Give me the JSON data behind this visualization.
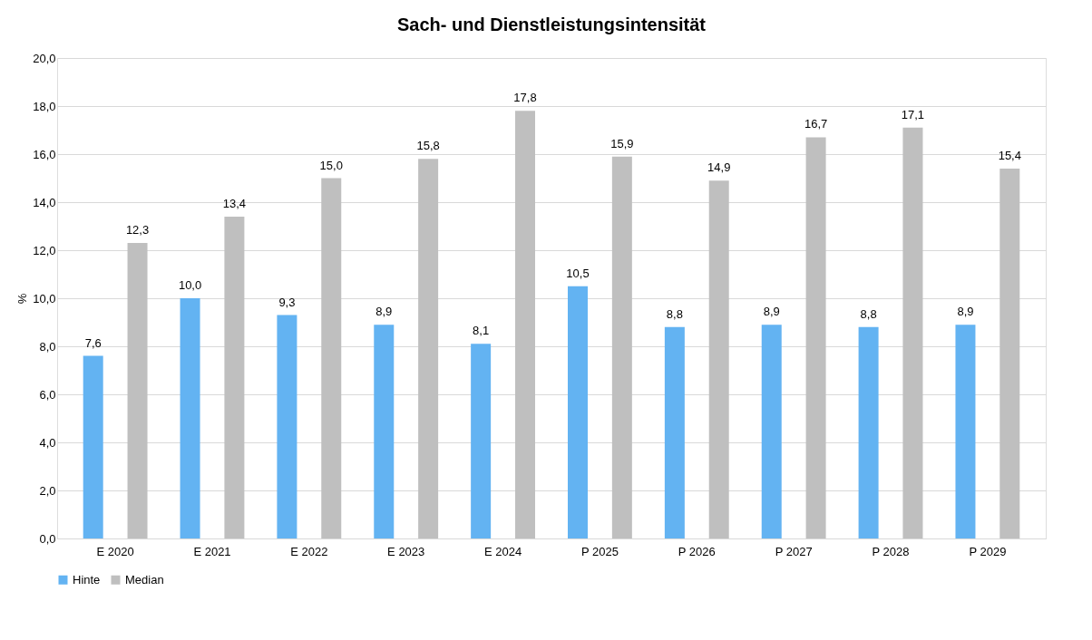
{
  "chart_data": {
    "type": "bar",
    "title": "Sach- und Dienstleistungsintensität",
    "ylabel": "%",
    "categories": [
      "E 2020",
      "E 2021",
      "E 2022",
      "E 2023",
      "E 2024",
      "P 2025",
      "P 2026",
      "P 2027",
      "P 2028",
      "P 2029"
    ],
    "series": [
      {
        "name": "Hinte",
        "color": "#63b3f2",
        "values": [
          7.6,
          10.0,
          9.3,
          8.9,
          8.1,
          10.5,
          8.8,
          8.9,
          8.8,
          8.9
        ],
        "value_labels": [
          "7,6",
          "10,0",
          "9,3",
          "8,9",
          "8,1",
          "10,5",
          "8,8",
          "8,9",
          "8,8",
          "8,9"
        ]
      },
      {
        "name": "Median",
        "color": "#bfbfbf",
        "values": [
          12.3,
          13.4,
          15.0,
          15.8,
          17.8,
          15.9,
          14.9,
          16.7,
          17.1,
          15.4
        ],
        "value_labels": [
          "12,3",
          "13,4",
          "15,0",
          "15,8",
          "17,8",
          "15,9",
          "14,9",
          "16,7",
          "17,1",
          "15,4"
        ]
      }
    ],
    "ylim": [
      0,
      20
    ],
    "yticks": [
      {
        "value": 0,
        "label": "0,0"
      },
      {
        "value": 2,
        "label": "2,0"
      },
      {
        "value": 4,
        "label": "4,0"
      },
      {
        "value": 6,
        "label": "6,0"
      },
      {
        "value": 8,
        "label": "8,0"
      },
      {
        "value": 10,
        "label": "10,0"
      },
      {
        "value": 12,
        "label": "12,0"
      },
      {
        "value": 14,
        "label": "14,0"
      },
      {
        "value": 16,
        "label": "16,0"
      },
      {
        "value": 18,
        "label": "18,0"
      },
      {
        "value": 20,
        "label": "20,0"
      }
    ],
    "grid": "y",
    "legend": "bottom"
  }
}
